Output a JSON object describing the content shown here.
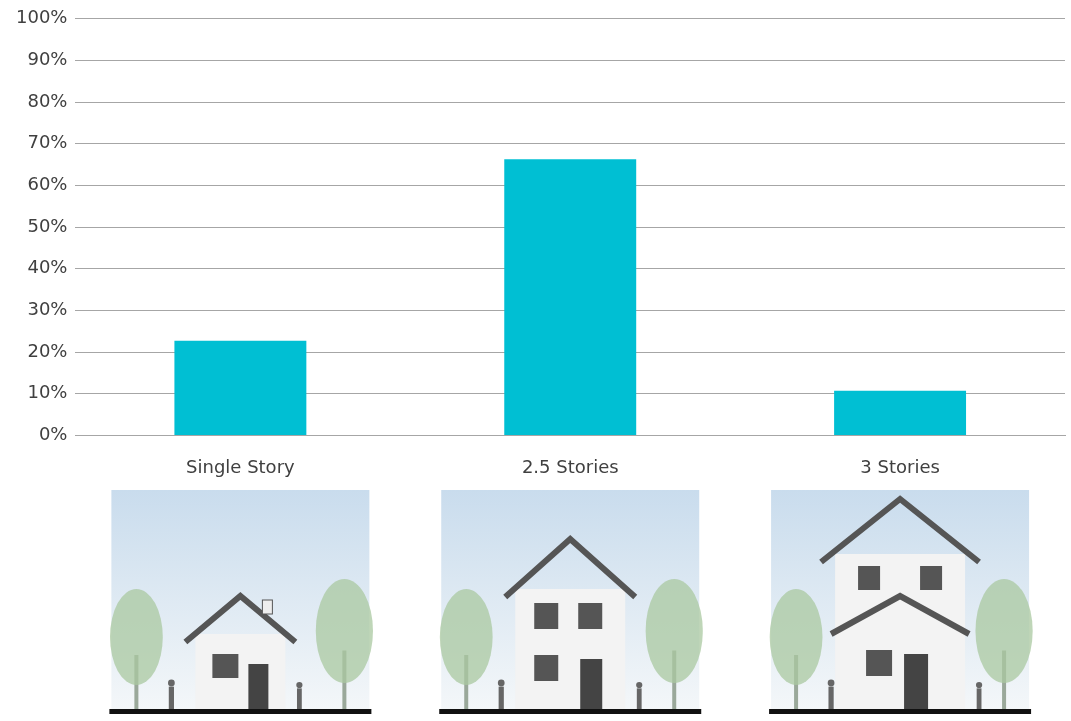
{
  "chart_data": {
    "type": "bar",
    "categories": [
      "Single Story",
      "2.5 Stories",
      "3 Stories"
    ],
    "values": [
      22.7,
      66.3,
      10.7
    ],
    "color": "#00bfd3",
    "ylim": [
      0,
      100
    ],
    "yticks": [
      {
        "value": 0,
        "label": "0%"
      },
      {
        "value": 10,
        "label": "10%"
      },
      {
        "value": 20,
        "label": "20%"
      },
      {
        "value": 30,
        "label": "30%"
      },
      {
        "value": 40,
        "label": "40%"
      },
      {
        "value": 50,
        "label": "50%"
      },
      {
        "value": 60,
        "label": "60%"
      },
      {
        "value": 70,
        "label": "70%"
      },
      {
        "value": 80,
        "label": "80%"
      },
      {
        "value": 90,
        "label": "90%"
      },
      {
        "value": 100,
        "label": "100%"
      }
    ],
    "grid": true
  }
}
